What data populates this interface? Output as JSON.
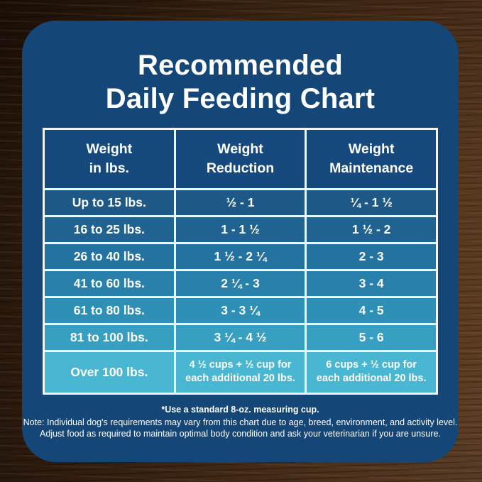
{
  "title": {
    "line1": "Recommended",
    "line2": "Daily Feeding Chart"
  },
  "table": {
    "headers": [
      "Weight\nin lbs.",
      "Weight\nReduction",
      "Weight\nMaintenance"
    ],
    "rows": [
      {
        "weight": "Up to 15 lbs.",
        "reduction": "½ - 1",
        "maintenance": "¼ - 1 ½"
      },
      {
        "weight": "16 to 25 lbs.",
        "reduction": "1 - 1 ½",
        "maintenance": "1 ½ - 2"
      },
      {
        "weight": "26 to 40 lbs.",
        "reduction": "1 ½ - 2 ¼",
        "maintenance": "2 - 3"
      },
      {
        "weight": "41 to 60 lbs.",
        "reduction": "2 ¼ - 3",
        "maintenance": "3 - 4"
      },
      {
        "weight": "61 to 80 lbs.",
        "reduction": "3 - 3 ¼",
        "maintenance": "4 - 5"
      },
      {
        "weight": "81 to 100 lbs.",
        "reduction": "3 ¼ - 4 ½",
        "maintenance": "5 - 6"
      },
      {
        "weight": "Over 100 lbs.",
        "reduction": "4 ½ cups + ½ cup for\neach additional 20 lbs.",
        "maintenance": "6 cups + ½ cup for\neach additional 20 lbs."
      }
    ],
    "row_colors": [
      "#1d5886",
      "#206390",
      "#2472a0",
      "#2980ab",
      "#2e90b6",
      "#379fc2",
      "#49b6d2"
    ]
  },
  "footnote": {
    "line1": "*Use a standard 8-oz. measuring cup.",
    "line2": "Note: Individual dog's requirements may vary from this chart due to age, breed, environment, and activity level.",
    "line3": "Adjust food as required to maintain optimal body condition and ask your veterinarian if you are unsure."
  },
  "colors": {
    "card_bg": "#144678",
    "header_bg": "#16497d",
    "grid_border": "#f2f5f7",
    "text": "#ffffff"
  },
  "chart_data": {
    "type": "table",
    "title": "Recommended Daily Feeding Chart",
    "columns": [
      "Weight in lbs.",
      "Weight Reduction",
      "Weight Maintenance"
    ],
    "rows": [
      [
        "Up to 15 lbs.",
        "½ - 1",
        "¼ - 1 ½"
      ],
      [
        "16 to 25 lbs.",
        "1 - 1 ½",
        "1 ½ - 2"
      ],
      [
        "26 to 40 lbs.",
        "1 ½ - 2 ¼",
        "2 - 3"
      ],
      [
        "41 to 60 lbs.",
        "2 ¼ - 3",
        "3 - 4"
      ],
      [
        "61 to 80 lbs.",
        "3 - 3 ¼",
        "4 - 5"
      ],
      [
        "81 to 100 lbs.",
        "3 ¼ - 4 ½",
        "5 - 6"
      ],
      [
        "Over 100 lbs.",
        "4 ½ cups + ½ cup for each additional 20 lbs.",
        "6 cups + ½ cup for each additional 20 lbs."
      ]
    ],
    "notes": [
      "*Use a standard 8-oz. measuring cup.",
      "Note: Individual dog's requirements may vary from this chart due to age, breed, environment, and activity level.",
      "Adjust food as required to maintain optimal body condition and ask your veterinarian if you are unsure."
    ]
  }
}
